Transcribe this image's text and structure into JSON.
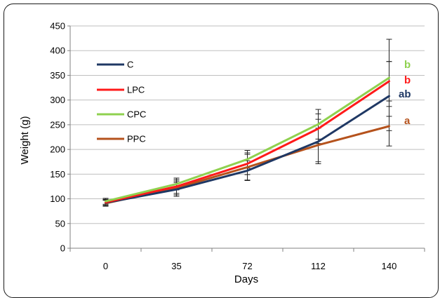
{
  "chart_data": {
    "type": "line",
    "title": "",
    "xlabel": "Days",
    "ylabel": "Weight (g)",
    "ylim": [
      0,
      450
    ],
    "yticks": [
      0,
      50,
      100,
      150,
      200,
      250,
      300,
      350,
      400,
      450
    ],
    "categories": [
      "0",
      "35",
      "72",
      "112",
      "140"
    ],
    "grid": "horizontal",
    "legend_position": "upper-left",
    "series": [
      {
        "name": "C",
        "color": "#1f3864",
        "values": [
          92,
          119,
          157,
          216,
          308
        ],
        "error": [
          6,
          14,
          20,
          45,
          70
        ]
      },
      {
        "name": "LPC",
        "color": "#ff1a1a",
        "values": [
          93,
          125,
          171,
          242,
          338
        ],
        "error": [
          6,
          14,
          22,
          30,
          40
        ]
      },
      {
        "name": "CPC",
        "color": "#8fd14f",
        "values": [
          95,
          130,
          180,
          251,
          345
        ],
        "error": [
          6,
          12,
          18,
          30,
          78
        ]
      },
      {
        "name": "PPC",
        "color": "#b5521c",
        "values": [
          91,
          122,
          164,
          209,
          247
        ],
        "error": [
          6,
          14,
          26,
          34,
          40
        ]
      }
    ],
    "annotations": [
      {
        "text": "b",
        "series": "CPC",
        "color": "#8fd14f"
      },
      {
        "text": "b",
        "series": "LPC",
        "color": "#ff1a1a"
      },
      {
        "text": "ab",
        "series": "C",
        "color": "#1f3864"
      },
      {
        "text": "a",
        "series": "PPC",
        "color": "#b5521c"
      }
    ]
  }
}
